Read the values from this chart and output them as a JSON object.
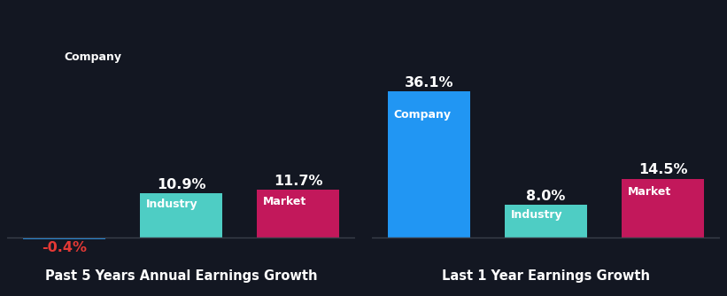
{
  "background_color": "#131722",
  "chart1": {
    "title": "Past 5 Years Annual Earnings Growth",
    "categories": [
      "Company",
      "Industry",
      "Market"
    ],
    "values": [
      -0.4,
      10.9,
      11.7
    ],
    "colors": [
      "#2196f3",
      "#4ecdc4",
      "#c2185b"
    ],
    "neg_value_color": "#e53935",
    "ylim": [
      -5,
      55
    ]
  },
  "chart2": {
    "title": "Last 1 Year Earnings Growth",
    "categories": [
      "Company",
      "Industry",
      "Market"
    ],
    "values": [
      36.1,
      8.0,
      14.5
    ],
    "colors": [
      "#2196f3",
      "#4ecdc4",
      "#c2185b"
    ],
    "neg_value_color": "#e53935",
    "ylim": [
      -5,
      55
    ]
  },
  "title_color": "#ffffff",
  "title_fontsize": 10.5,
  "value_fontsize": 11.5,
  "cat_label_fontsize": 9,
  "bar_width": 0.7,
  "value_fontweight": "bold",
  "cat_fontweight": "bold"
}
